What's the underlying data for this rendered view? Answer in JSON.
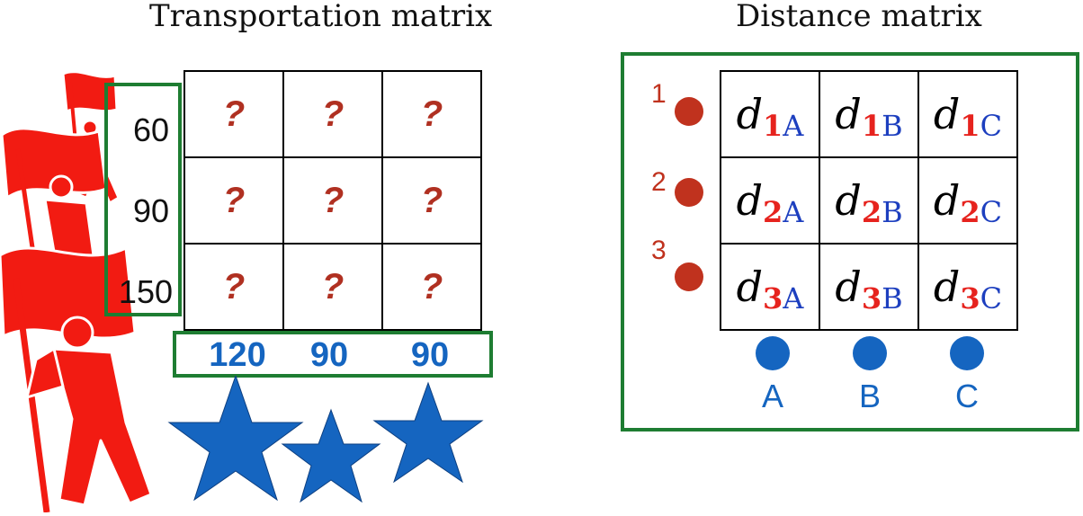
{
  "transportation": {
    "title": "Transportation matrix",
    "supplies": [
      "60",
      "90",
      "150"
    ],
    "demands": [
      "120",
      "90",
      "90"
    ],
    "cells": [
      [
        "?",
        "?",
        "?"
      ],
      [
        "?",
        "?",
        "?"
      ],
      [
        "?",
        "?",
        "?"
      ]
    ]
  },
  "distance": {
    "title": "Distance matrix",
    "rows": [
      "1",
      "2",
      "3"
    ],
    "cols": [
      "A",
      "B",
      "C"
    ],
    "symbol": "d",
    "row_index_color": "#e6231e",
    "col_index_color": "#1d3fbf"
  },
  "colors": {
    "frame_green": "#1e7d32",
    "question_red": "#b03021",
    "demand_blue": "#1565c0",
    "supplier_red": "#f21b12",
    "star_blue": "#1565c0"
  },
  "icons": {
    "suppliers": "flag-bearer-silhouette-icon",
    "consumers": "star-icon",
    "row_markers": "red-dot-icon",
    "column_markers": "blue-dot-icon"
  }
}
